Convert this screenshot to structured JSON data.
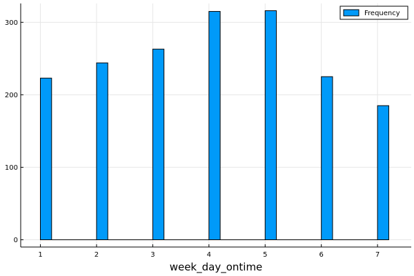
{
  "chart_data": {
    "type": "bar",
    "title": "",
    "xlabel": "week_day_ontime",
    "ylabel": "",
    "x_ticks": [
      "1",
      "2",
      "3",
      "4",
      "5",
      "6",
      "7"
    ],
    "y_ticks": [
      "0",
      "100",
      "200",
      "300"
    ],
    "xlim": [
      0.65,
      7.6
    ],
    "ylim": [
      -10,
      326
    ],
    "grid": true,
    "legend_position": "top-right",
    "bin_width": 0.2,
    "series": [
      {
        "name": "Frequency",
        "color": "#009AF9",
        "x": [
          1,
          1.2,
          1.4,
          1.6,
          1.8,
          2,
          2.2,
          2.4,
          2.6,
          2.8,
          3,
          3.2,
          3.4,
          3.6,
          3.8,
          4,
          4.2,
          4.4,
          4.6,
          4.8,
          5,
          5.2,
          5.4,
          5.6,
          5.8,
          6,
          6.2,
          6.4,
          6.6,
          6.8,
          7
        ],
        "values": [
          223,
          0,
          0,
          0,
          0,
          244,
          0,
          0,
          0,
          0,
          263,
          0,
          0,
          0,
          0,
          315,
          0,
          0,
          0,
          0,
          316,
          0,
          0,
          0,
          0,
          225,
          0,
          0,
          0,
          0,
          185
        ]
      }
    ]
  }
}
